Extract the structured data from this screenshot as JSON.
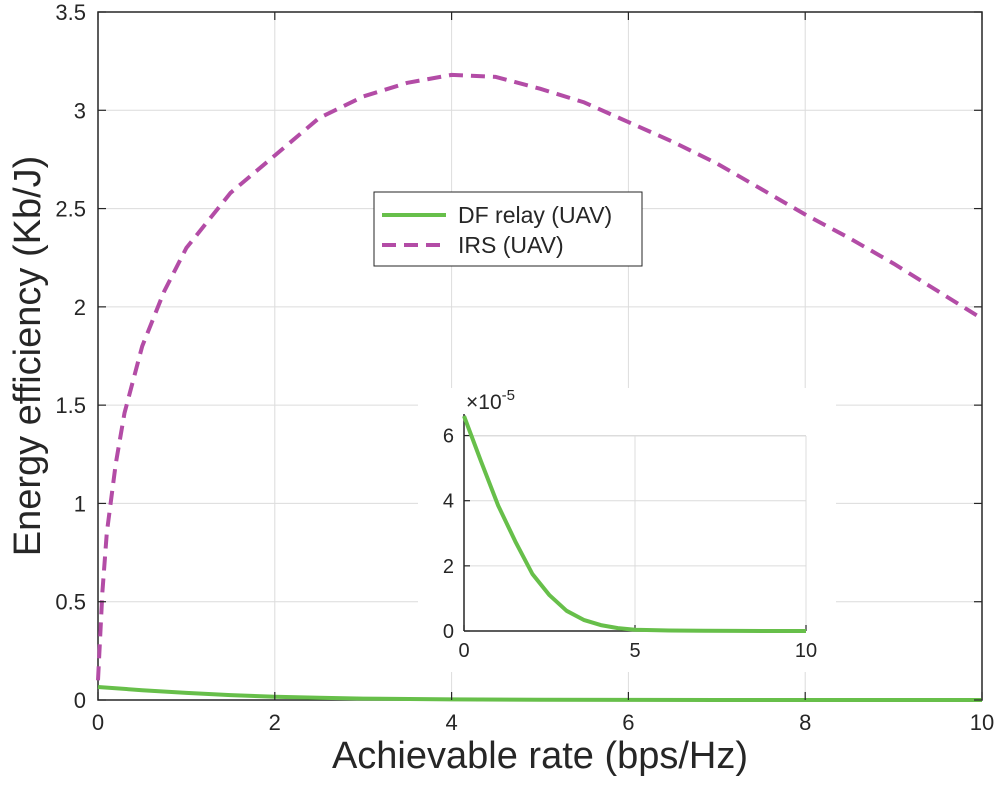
{
  "chart_data": [
    {
      "type": "line",
      "title": "",
      "xlabel": "Achievable rate (bps/Hz)",
      "ylabel": "Energy efficiency (Kb/J)",
      "xlim": [
        0,
        10
      ],
      "ylim": [
        0,
        3.5
      ],
      "x_ticks": [
        0,
        2,
        4,
        6,
        8,
        10
      ],
      "x_tick_labels": [
        "0",
        "2",
        "4",
        "6",
        "8",
        "10"
      ],
      "y_ticks": [
        0,
        0.5,
        1,
        1.5,
        2,
        2.5,
        3,
        3.5
      ],
      "y_tick_labels": [
        "0",
        "0.5",
        "1",
        "1.5",
        "2",
        "2.5",
        "3",
        "3.5"
      ],
      "grid": true,
      "legend_position": "center",
      "series": [
        {
          "name": "DF relay (UAV)",
          "color": "#67bf4a",
          "style": "solid",
          "x": [
            0,
            0.5,
            1,
            1.5,
            2,
            2.5,
            3,
            4,
            5,
            6,
            7,
            8,
            9,
            10
          ],
          "y": [
            0.066,
            0.05,
            0.036,
            0.025,
            0.017,
            0.011,
            0.007,
            0.003,
            0.001,
            0.0005,
            0.0002,
            0.0001,
            5e-05,
            2e-05
          ]
        },
        {
          "name": "IRS (UAV)",
          "color": "#b34ca6",
          "style": "dashed",
          "x": [
            0,
            0.05,
            0.1,
            0.2,
            0.3,
            0.5,
            0.75,
            1,
            1.5,
            2,
            2.5,
            3,
            3.5,
            4,
            4.5,
            5,
            5.5,
            6,
            6.5,
            7,
            7.5,
            8,
            8.5,
            9,
            9.5,
            10
          ],
          "y": [
            0.1,
            0.55,
            0.85,
            1.2,
            1.46,
            1.8,
            2.08,
            2.3,
            2.58,
            2.77,
            2.96,
            3.07,
            3.14,
            3.18,
            3.17,
            3.11,
            3.04,
            2.94,
            2.84,
            2.73,
            2.6,
            2.47,
            2.35,
            2.22,
            2.08,
            1.94
          ]
        }
      ]
    },
    {
      "type": "line",
      "title": "",
      "scale_label": "×10",
      "scale_exponent": "-5",
      "xlim": [
        0,
        10
      ],
      "ylim": [
        0,
        6.6
      ],
      "x_ticks": [
        0,
        5,
        10
      ],
      "x_tick_labels": [
        "0",
        "5",
        "10"
      ],
      "y_ticks": [
        0,
        2,
        4,
        6
      ],
      "y_tick_labels": [
        "0",
        "2",
        "4",
        "6"
      ],
      "grid": true,
      "series": [
        {
          "name": "DF relay (UAV)",
          "color": "#67bf4a",
          "style": "solid",
          "x": [
            0,
            0.5,
            1,
            1.5,
            2,
            2.5,
            3,
            3.5,
            4,
            4.5,
            5,
            6,
            7,
            8,
            9,
            10
          ],
          "y": [
            6.6,
            5.2,
            3.85,
            2.75,
            1.75,
            1.1,
            0.62,
            0.34,
            0.18,
            0.09,
            0.04,
            0.015,
            0.006,
            0.003,
            0.001,
            0.0005
          ]
        }
      ]
    }
  ]
}
